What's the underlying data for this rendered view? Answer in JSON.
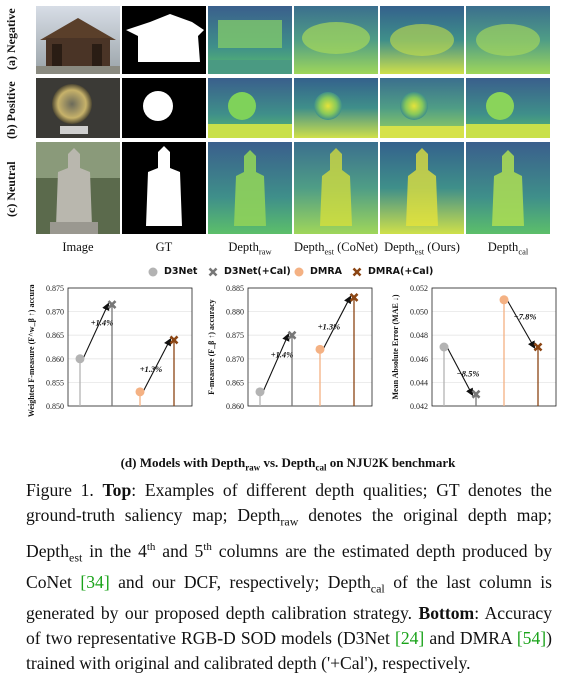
{
  "row_labels": [
    "(a) Negative",
    "(b) Positive",
    "(c) Neutral"
  ],
  "columns": [
    {
      "main": "Image",
      "sub": "",
      "tail": ""
    },
    {
      "main": "GT",
      "sub": "",
      "tail": ""
    },
    {
      "main": "Depth",
      "sub": "raw",
      "tail": ""
    },
    {
      "main": "Depth",
      "sub": "est",
      "tail": " (CoNet)"
    },
    {
      "main": "Depth",
      "sub": "est",
      "tail": " (Ours)"
    },
    {
      "main": "Depth",
      "sub": "cal",
      "tail": ""
    }
  ],
  "legend": [
    {
      "label": "D3Net",
      "color": "#b3b3b3",
      "marker": "circle"
    },
    {
      "label": "D3Net(+Cal)",
      "color": "#777777",
      "marker": "x"
    },
    {
      "label": "DMRA",
      "color": "#f4b183",
      "marker": "circle"
    },
    {
      "label": "DMRA(+Cal)",
      "color": "#8b4513",
      "marker": "x"
    }
  ],
  "chart_data": [
    {
      "type": "scatter",
      "ylabel": "Weighted F-measure (F^w_β ↑) accuracy",
      "ylim": [
        0.85,
        0.875
      ],
      "yticks": [
        "0.875",
        "0.870",
        "0.865",
        "0.860",
        "0.855",
        "0.850"
      ],
      "series": [
        {
          "name": "D3Net",
          "values": [
            0.86
          ]
        },
        {
          "name": "D3Net(+Cal)",
          "values": [
            0.8715
          ]
        },
        {
          "name": "DMRA",
          "values": [
            0.853
          ]
        },
        {
          "name": "DMRA(+Cal)",
          "values": [
            0.864
          ]
        }
      ],
      "annotations": [
        "+1.4%",
        "+1.3%"
      ]
    },
    {
      "type": "scatter",
      "ylabel": "F-measure (F_β ↑) accuracy",
      "ylim": [
        0.86,
        0.885
      ],
      "yticks": [
        "0.885",
        "0.880",
        "0.875",
        "0.870",
        "0.865",
        "0.860"
      ],
      "series": [
        {
          "name": "D3Net",
          "values": [
            0.863
          ]
        },
        {
          "name": "D3Net(+Cal)",
          "values": [
            0.875
          ]
        },
        {
          "name": "DMRA",
          "values": [
            0.872
          ]
        },
        {
          "name": "DMRA(+Cal)",
          "values": [
            0.883
          ]
        }
      ],
      "annotations": [
        "+1.4%",
        "+1.3%"
      ]
    },
    {
      "type": "scatter",
      "ylabel": "Mean Absolute Error (MAE ↓)",
      "ylim": [
        0.042,
        0.052
      ],
      "yticks": [
        "0.052",
        "0.050",
        "0.048",
        "0.046",
        "0.044",
        "0.042"
      ],
      "series": [
        {
          "name": "D3Net",
          "values": [
            0.047
          ]
        },
        {
          "name": "D3Net(+Cal)",
          "values": [
            0.043
          ]
        },
        {
          "name": "DMRA",
          "values": [
            0.051
          ]
        },
        {
          "name": "DMRA(+Cal)",
          "values": [
            0.047
          ]
        }
      ],
      "annotations": [
        "−8.5%",
        "−7.8%"
      ]
    }
  ],
  "subcaption": {
    "p1": "(d) Models with Depth",
    "s1": "raw",
    "p2": " vs. Depth",
    "s2": "cal",
    "p3": " on NJU2K benchmark"
  },
  "caption": {
    "t1": "Figure 1. ",
    "top": "Top",
    "t2": ": Examples of different depth qualities; GT denotes the ground-truth saliency map; Depth",
    "s_raw": "raw",
    "t3": " denotes the original depth map; Depth",
    "s_est": "est",
    "t4": " in the 4",
    "th1": "th",
    "t5": " and 5",
    "th2": "th",
    "t6": " columns are the estimated depth produced by CoNet ",
    "ref1": "[34]",
    "t7": " and our DCF, respectively; Depth",
    "s_cal": "cal",
    "t8": " of the last column is generated by our proposed depth calibration strategy. ",
    "bottom": "Bottom",
    "t9": ": Accuracy of two representative RGB-D SOD models (D3Net ",
    "ref2": "[24]",
    "t10": " and DMRA ",
    "ref3": "[54]",
    "t11": ") trained with original and calibrated depth ('+Cal'), respectively."
  }
}
